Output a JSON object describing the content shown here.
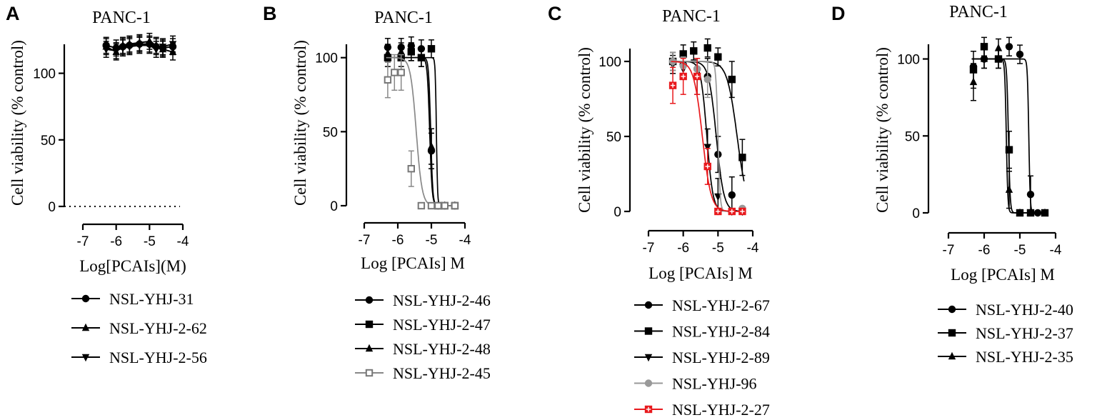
{
  "chart_data": [
    {
      "panel": "A",
      "type": "line",
      "title": "PANC-1",
      "xlabel": "Log[PCAIs](M)",
      "ylabel": "Cell viability (% control)",
      "xlim": [
        -7,
        -4
      ],
      "ylim": [
        0,
        125
      ],
      "xticks": [
        -7,
        -6,
        -5,
        -4
      ],
      "yticks": [
        0,
        50,
        100
      ],
      "series": [
        {
          "name": "NSL-YHJ-31",
          "marker": "circle",
          "color": "#000000",
          "x": [
            -6.3,
            -6.0,
            -5.8,
            -5.6,
            -5.3,
            -5.0,
            -4.8,
            -4.6,
            -4.3
          ],
          "y": [
            121,
            119,
            120,
            121,
            122,
            122,
            120,
            119,
            120
          ]
        },
        {
          "name": "NSL-YHJ-2-62",
          "marker": "triangle-up",
          "color": "#000000",
          "x": [
            -6.3,
            -6.0,
            -5.8,
            -5.6,
            -5.3,
            -5.0,
            -4.8,
            -4.6,
            -4.3
          ],
          "y": [
            120,
            116,
            121,
            122,
            123,
            124,
            121,
            118,
            116
          ]
        },
        {
          "name": "NSL-YHJ-2-56",
          "marker": "triangle-down",
          "color": "#000000",
          "x": [
            -6.3,
            -6.0,
            -5.8,
            -5.6,
            -5.3,
            -5.0,
            -4.8,
            -4.6,
            -4.3
          ],
          "y": [
            118,
            117,
            119,
            120,
            121,
            121,
            118,
            120,
            122
          ]
        }
      ]
    },
    {
      "panel": "B",
      "type": "line",
      "title": "PANC-1",
      "xlabel": "Log [PCAIs] M",
      "ylabel": "Cell viability (% control)",
      "xlim": [
        -7,
        -4
      ],
      "ylim": [
        0,
        110
      ],
      "xticks": [
        -7,
        -6,
        -5,
        -4
      ],
      "yticks": [
        0,
        50,
        100
      ],
      "series": [
        {
          "name": "NSL-YHJ-2-46",
          "marker": "circle",
          "color": "#000000",
          "x": [
            -6.3,
            -5.9,
            -5.6,
            -5.3,
            -5.0,
            -4.8,
            -4.6,
            -4.3
          ],
          "y": [
            107,
            107,
            108,
            106,
            37,
            0,
            0,
            0
          ]
        },
        {
          "name": "NSL-YHJ-2-47",
          "marker": "square",
          "color": "#000000",
          "x": [
            -6.3,
            -5.9,
            -5.6,
            -5.3,
            -5.0,
            -4.8,
            -4.6,
            -4.3
          ],
          "y": [
            100,
            100,
            104,
            100,
            106,
            0,
            0,
            0
          ]
        },
        {
          "name": "NSL-YHJ-2-48",
          "marker": "triangle-up",
          "color": "#000000",
          "x": [
            -6.3,
            -5.9,
            -5.6,
            -5.3,
            -5.0,
            -4.8,
            -4.6,
            -4.3
          ],
          "y": [
            103,
            104,
            104,
            100,
            40,
            0,
            0,
            0
          ]
        },
        {
          "name": "NSL-YHJ-2-45",
          "marker": "open-square",
          "color": "#777777",
          "x": [
            -6.3,
            -6.1,
            -5.9,
            -5.6,
            -5.3,
            -5.0,
            -4.8,
            -4.6,
            -4.3
          ],
          "y": [
            85,
            90,
            90,
            25,
            0,
            0,
            0,
            0,
            0
          ]
        }
      ]
    },
    {
      "panel": "C",
      "type": "line",
      "title": "PANC-1",
      "xlabel": "Log [PCAIs] M",
      "ylabel": "Cell viability (% control)",
      "xlim": [
        -7,
        -4
      ],
      "ylim": [
        0,
        110
      ],
      "xticks": [
        -7,
        -6,
        -5,
        -4
      ],
      "yticks": [
        0,
        50,
        100
      ],
      "series": [
        {
          "name": "NSL-YHJ-2-67",
          "marker": "circle",
          "color": "#000000",
          "x": [
            -6.3,
            -6.0,
            -5.6,
            -5.3,
            -5.0,
            -4.6,
            -4.3
          ],
          "y": [
            100,
            98,
            95,
            90,
            38,
            11,
            0
          ]
        },
        {
          "name": "NSL-YHJ-2-84",
          "marker": "square",
          "color": "#000000",
          "x": [
            -6.3,
            -6.0,
            -5.7,
            -5.3,
            -5.0,
            -4.6,
            -4.3
          ],
          "y": [
            100,
            105,
            107,
            109,
            103,
            88,
            36
          ]
        },
        {
          "name": "NSL-YHJ-2-89",
          "marker": "triangle-down",
          "color": "#000000",
          "x": [
            -6.3,
            -6.0,
            -5.6,
            -5.3,
            -5.0,
            -4.6,
            -4.3
          ],
          "y": [
            98,
            95,
            90,
            43,
            10,
            0,
            0
          ]
        },
        {
          "name": "NSL-YHJ-96",
          "marker": "circle",
          "color": "#999999",
          "x": [
            -6.3,
            -6.0,
            -5.6,
            -5.3,
            -5.0,
            -4.6,
            -4.3
          ],
          "y": [
            100,
            97,
            95,
            88,
            0,
            0,
            2
          ]
        },
        {
          "name": "NSL-YHJ-2-27",
          "marker": "crossed-square",
          "color": "#e8191d",
          "x": [
            -6.3,
            -6.0,
            -5.6,
            -5.3,
            -5.0,
            -4.6,
            -4.3
          ],
          "y": [
            84,
            90,
            90,
            30,
            0,
            0,
            0
          ]
        }
      ]
    },
    {
      "panel": "D",
      "type": "line",
      "title": "PANC-1",
      "xlabel": "Log [PCAIs] M",
      "ylabel": "Cell viability (% control)",
      "xlim": [
        -7,
        -4
      ],
      "ylim": [
        0,
        110
      ],
      "xticks": [
        -7,
        -6,
        -5,
        -4
      ],
      "yticks": [
        0,
        50,
        100
      ],
      "series": [
        {
          "name": "NSL-YHJ-2-40",
          "marker": "circle",
          "color": "#000000",
          "x": [
            -6.3,
            -6.0,
            -5.6,
            -5.3,
            -5.0,
            -4.7,
            -4.5
          ],
          "y": [
            95,
            100,
            100,
            108,
            103,
            12,
            0
          ]
        },
        {
          "name": "NSL-YHJ-2-37",
          "marker": "square",
          "color": "#000000",
          "x": [
            -6.3,
            -6.0,
            -5.6,
            -5.3,
            -5.0,
            -4.7,
            -4.3
          ],
          "y": [
            93,
            108,
            100,
            41,
            0,
            0,
            0
          ]
        },
        {
          "name": "NSL-YHJ-2-35",
          "marker": "triangle-up",
          "color": "#000000",
          "x": [
            -6.3,
            -6.0,
            -5.6,
            -5.3,
            -5.0,
            -4.7,
            -4.3
          ],
          "y": [
            85,
            100,
            107,
            15,
            0,
            0,
            0
          ]
        }
      ]
    }
  ]
}
